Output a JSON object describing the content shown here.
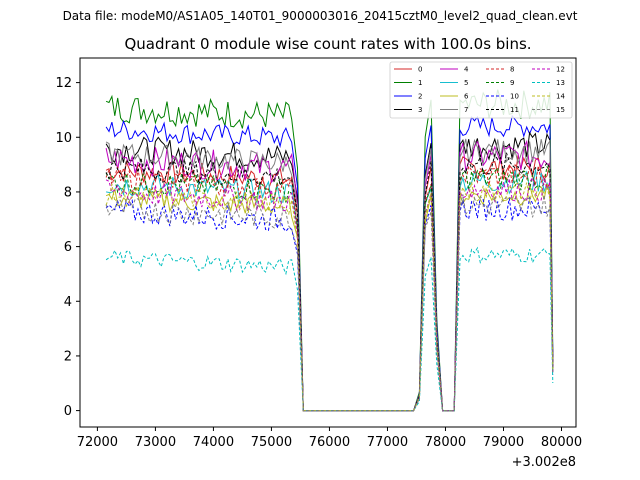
{
  "figure": {
    "suptitle": "Data file: modeM0/AS1A05_140T01_9000003016_20415cztM0_level2_quad_clean.evt"
  },
  "chart_data": {
    "type": "line",
    "title": "Quadrant 0 module wise count rates with 100.0s bins.",
    "xlabel": "",
    "ylabel": "",
    "x_offset_label": "+3.002e8",
    "xlim": [
      71700,
      80250
    ],
    "ylim": [
      -0.6,
      12.9
    ],
    "x_ticks": [
      72000,
      73000,
      74000,
      75000,
      76000,
      77000,
      78000,
      79000,
      80000
    ],
    "x_tick_labels": [
      "72000",
      "73000",
      "74000",
      "75000",
      "76000",
      "77000",
      "78000",
      "79000",
      "80000"
    ],
    "y_ticks": [
      0,
      2,
      4,
      6,
      8,
      10,
      12
    ],
    "y_tick_labels": [
      "0",
      "2",
      "4",
      "6",
      "8",
      "10",
      "12"
    ],
    "grid": false,
    "legend_placement": "upper-right",
    "legend_columns": 4,
    "segments": [
      {
        "start": 72150,
        "end": 75350
      },
      {
        "start": 77450,
        "end": 77650
      },
      {
        "start": 78250,
        "end": 79850
      }
    ],
    "gap_points": [
      {
        "x": 75450,
        "frac": 0.8
      },
      {
        "x": 75550,
        "frac": 0.0
      },
      {
        "x": 77450,
        "frac": 0.0
      },
      {
        "x": 77550,
        "frac": 0.06
      },
      {
        "x": 77650,
        "frac": 0.9
      },
      {
        "x": 77750,
        "frac": 1.0
      },
      {
        "x": 77850,
        "frac": 0.3
      },
      {
        "x": 77950,
        "frac": 0.0
      },
      {
        "x": 78050,
        "frac": 0.0
      },
      {
        "x": 78150,
        "frac": 0.0
      },
      {
        "x": 78250,
        "frac": 1.0
      },
      {
        "x": 79850,
        "frac": 0.18
      }
    ],
    "series": [
      {
        "name": "0",
        "color": "#d62728",
        "dash": "solid",
        "base": 8.8,
        "amp": 0.45
      },
      {
        "name": "1",
        "color": "#008000",
        "dash": "solid",
        "base": 11.1,
        "amp": 0.55
      },
      {
        "name": "2",
        "color": "#0000ff",
        "dash": "solid",
        "base": 10.3,
        "amp": 0.4
      },
      {
        "name": "3",
        "color": "#000000",
        "dash": "solid",
        "base": 9.6,
        "amp": 0.5
      },
      {
        "name": "4",
        "color": "#bf00bf",
        "dash": "solid",
        "base": 9.2,
        "amp": 0.55
      },
      {
        "name": "5",
        "color": "#17becf",
        "dash": "solid",
        "base": 8.3,
        "amp": 0.45
      },
      {
        "name": "6",
        "color": "#bcbd22",
        "dash": "solid",
        "base": 7.8,
        "amp": 0.4
      },
      {
        "name": "7",
        "color": "#7f7f7f",
        "dash": "solid",
        "base": 9.4,
        "amp": 0.45
      },
      {
        "name": "8",
        "color": "#d62728",
        "dash": "dashed",
        "base": 8.5,
        "amp": 0.45
      },
      {
        "name": "9",
        "color": "#008000",
        "dash": "dashed",
        "base": 8.4,
        "amp": 0.45
      },
      {
        "name": "10",
        "color": "#0000ff",
        "dash": "dashed",
        "base": 7.3,
        "amp": 0.45
      },
      {
        "name": "11",
        "color": "#000000",
        "dash": "dashed",
        "base": 8.9,
        "amp": 0.45
      },
      {
        "name": "12",
        "color": "#bf00bf",
        "dash": "dashed",
        "base": 8.0,
        "amp": 0.45
      },
      {
        "name": "13",
        "color": "#00bfbf",
        "dash": "dashed",
        "base": 5.6,
        "amp": 0.3
      },
      {
        "name": "14",
        "color": "#bcbd22",
        "dash": "dashed",
        "base": 7.9,
        "amp": 0.4
      },
      {
        "name": "15",
        "color": "#7f7f7f",
        "dash": "dashed",
        "base": 7.4,
        "amp": 0.45
      }
    ]
  }
}
